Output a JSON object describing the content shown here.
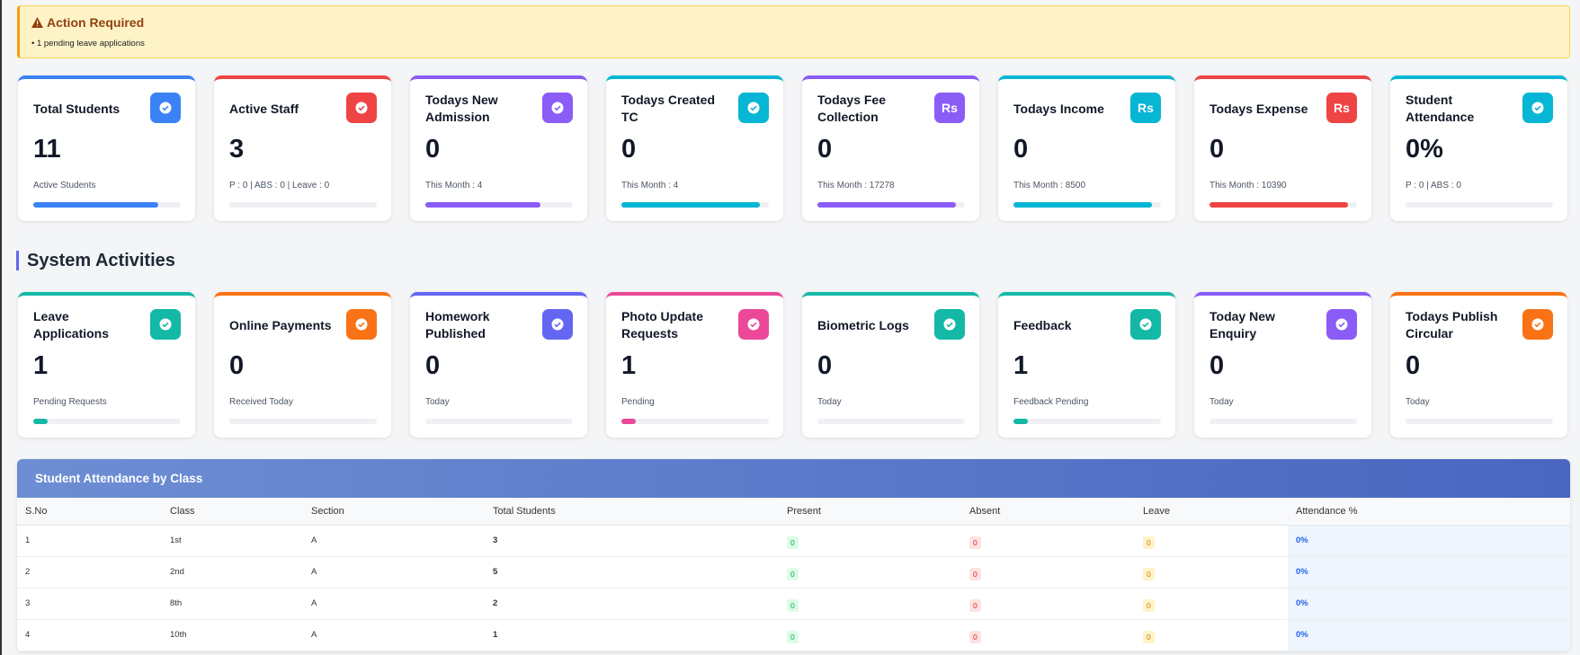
{
  "alert": {
    "title": "Action Required",
    "items": [
      "1 pending leave applications"
    ]
  },
  "stats": [
    {
      "label": "Total Students",
      "value": "11",
      "sub": "Active Students",
      "progress": 85,
      "color": "#3b82f6"
    },
    {
      "label": "Active Staff",
      "value": "3",
      "sub": "P : 0 | ABS : 0 | Leave : 0",
      "progress": 0,
      "color": "#ef4444"
    },
    {
      "label": "Todays New Admission",
      "value": "0",
      "sub": "This Month : 4",
      "progress": 78,
      "color": "#8b5cf6"
    },
    {
      "label": "Todays Created TC",
      "value": "0",
      "sub": "This Month : 4",
      "progress": 94,
      "color": "#06b6d4"
    },
    {
      "label": "Todays Fee Collection",
      "value": "0",
      "sub": "This Month : 17278",
      "progress": 94,
      "color": "#8b5cf6",
      "icon": "Rs"
    },
    {
      "label": "Todays Income",
      "value": "0",
      "sub": "This Month : 8500",
      "progress": 94,
      "color": "#06b6d4",
      "icon": "Rs"
    },
    {
      "label": "Todays Expense",
      "value": "0",
      "sub": "This Month : 10390",
      "progress": 94,
      "color": "#ef4444",
      "icon": "Rs"
    },
    {
      "label": "Student Attendance",
      "value": "0%",
      "sub": "P : 0 | ABS : 0",
      "progress": 0,
      "color": "#06b6d4"
    }
  ],
  "section_title": "System Activities",
  "activities": [
    {
      "label": "Leave Applications",
      "value": "1",
      "sub": "Pending Requests",
      "progress": 10,
      "color": "#14b8a6"
    },
    {
      "label": "Online Payments",
      "value": "0",
      "sub": "Received Today",
      "progress": 0,
      "color": "#f97316"
    },
    {
      "label": "Homework Published",
      "value": "0",
      "sub": "Today",
      "progress": 0,
      "color": "#6366f1"
    },
    {
      "label": "Photo Update Requests",
      "value": "1",
      "sub": "Pending",
      "progress": 10,
      "color": "#ec4899"
    },
    {
      "label": "Biometric Logs",
      "value": "0",
      "sub": "Today",
      "progress": 0,
      "color": "#14b8a6"
    },
    {
      "label": "Feedback",
      "value": "1",
      "sub": "Feedback Pending",
      "progress": 10,
      "color": "#14b8a6"
    },
    {
      "label": "Today New Enquiry",
      "value": "0",
      "sub": "Today",
      "progress": 0,
      "color": "#8b5cf6"
    },
    {
      "label": "Todays Publish Circular",
      "value": "0",
      "sub": "Today",
      "progress": 0,
      "color": "#f97316"
    }
  ],
  "table": {
    "title": "Student Attendance by Class",
    "columns": [
      "S.No",
      "Class",
      "Section",
      "Total Students",
      "Present",
      "Absent",
      "Leave",
      "Attendance %"
    ],
    "rows": [
      [
        "1",
        "1st",
        "A",
        "3",
        "0",
        "0",
        "0",
        "0%"
      ],
      [
        "2",
        "2nd",
        "A",
        "5",
        "0",
        "0",
        "0",
        "0%"
      ],
      [
        "3",
        "8th",
        "A",
        "2",
        "0",
        "0",
        "0",
        "0%"
      ],
      [
        "4",
        "10th",
        "A",
        "1",
        "0",
        "0",
        "0",
        "0%"
      ]
    ]
  }
}
